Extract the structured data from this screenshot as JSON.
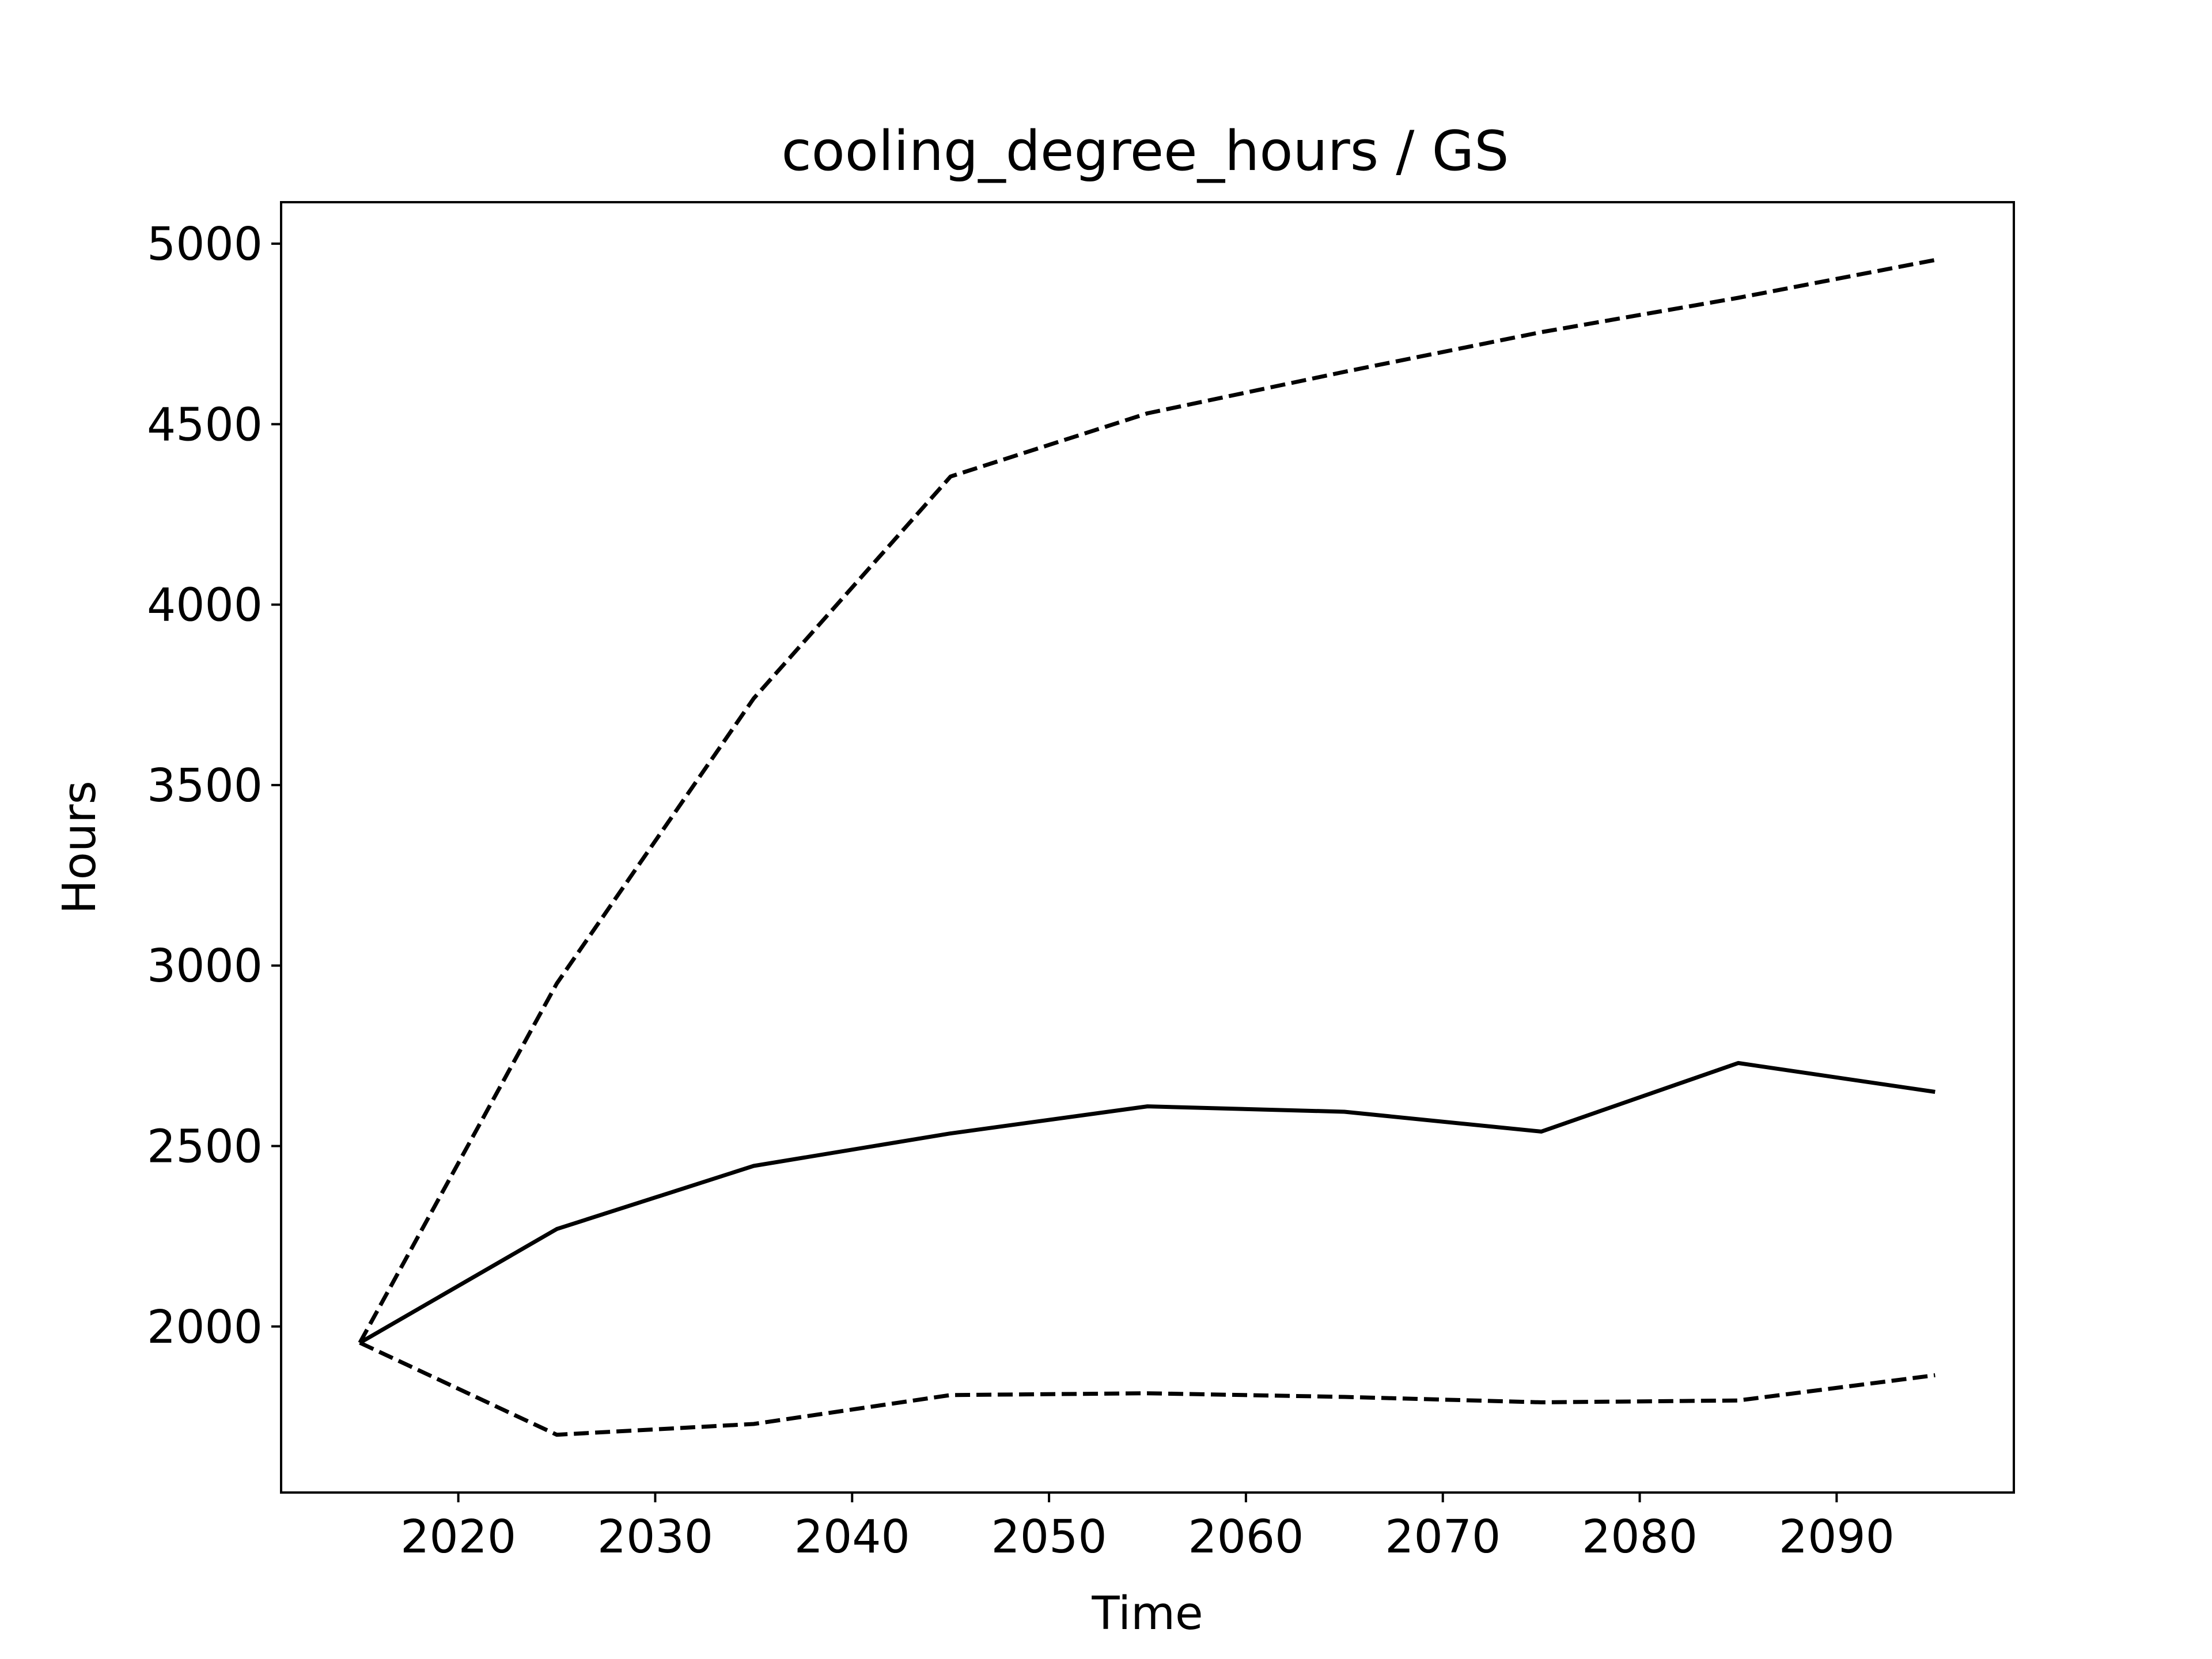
{
  "chart_data": {
    "type": "line",
    "title": "cooling_degree_hours / GS",
    "xlabel": "Time",
    "ylabel": "Hours",
    "x": [
      2015,
      2025,
      2035,
      2045,
      2055,
      2065,
      2075,
      2085,
      2095
    ],
    "series": [
      {
        "style": "solid",
        "color": "#000000",
        "values": [
          1955,
          2270,
          2445,
          2535,
          2610,
          2595,
          2540,
          2730,
          2650
        ]
      },
      {
        "style": "dashed",
        "color": "#000000",
        "values": [
          1955,
          2950,
          3740,
          4355,
          4530,
          4645,
          4755,
          4850,
          4955
        ]
      },
      {
        "style": "dashed",
        "color": "#000000",
        "values": [
          1955,
          1700,
          1730,
          1810,
          1815,
          1805,
          1790,
          1795,
          1865
        ]
      }
    ],
    "xlim": [
      2011,
      2099
    ],
    "ylim": [
      1540,
      5115
    ],
    "xticks": [
      2020,
      2030,
      2040,
      2050,
      2060,
      2070,
      2080,
      2090
    ],
    "yticks": [
      2000,
      2500,
      3000,
      3500,
      4000,
      4500,
      5000
    ],
    "grid": false,
    "legend": "none"
  }
}
